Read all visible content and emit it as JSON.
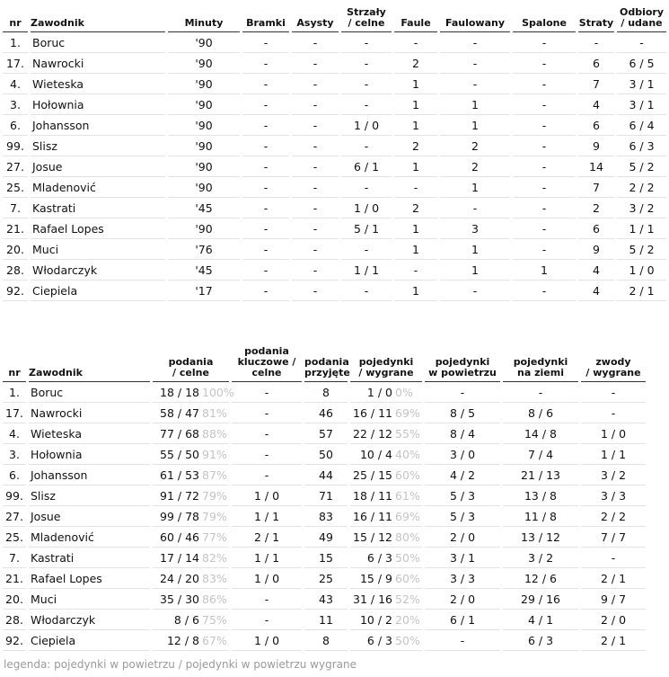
{
  "table1": {
    "headers": [
      "nr",
      "Zawodnik",
      "Minuty",
      "Bramki",
      "Asysty",
      "Strzały\n/ celne",
      "Faule",
      "Faulowany",
      "Spalone",
      "Straty",
      "Odbiory\n/ udane"
    ],
    "rows": [
      [
        "1.",
        "Boruc",
        "'90",
        "-",
        "-",
        "-",
        "-",
        "-",
        "-",
        "-",
        "-"
      ],
      [
        "17.",
        "Nawrocki",
        "'90",
        "-",
        "-",
        "-",
        "2",
        "-",
        "-",
        "6",
        "6 / 5"
      ],
      [
        "4.",
        "Wieteska",
        "'90",
        "-",
        "-",
        "-",
        "1",
        "-",
        "-",
        "7",
        "3 / 1"
      ],
      [
        "3.",
        "Hołownia",
        "'90",
        "-",
        "-",
        "-",
        "1",
        "1",
        "-",
        "4",
        "3 / 1"
      ],
      [
        "6.",
        "Johansson",
        "'90",
        "-",
        "-",
        "1 / 0",
        "1",
        "1",
        "-",
        "6",
        "6 / 4"
      ],
      [
        "99.",
        "Slisz",
        "'90",
        "-",
        "-",
        "-",
        "2",
        "2",
        "-",
        "9",
        "6 / 3"
      ],
      [
        "27.",
        "Josue",
        "'90",
        "-",
        "-",
        "6 / 1",
        "1",
        "2",
        "-",
        "14",
        "5 / 2"
      ],
      [
        "25.",
        "Mladenović",
        "'90",
        "-",
        "-",
        "-",
        "-",
        "1",
        "-",
        "7",
        "2 / 2"
      ],
      [
        "7.",
        "Kastrati",
        "'45",
        "-",
        "-",
        "1 / 0",
        "2",
        "-",
        "-",
        "2",
        "3 / 2"
      ],
      [
        "21.",
        "Rafael Lopes",
        "'90",
        "-",
        "-",
        "5 / 1",
        "1",
        "3",
        "-",
        "6",
        "1 / 1"
      ],
      [
        "20.",
        "Muci",
        "'76",
        "-",
        "-",
        "-",
        "1",
        "1",
        "-",
        "9",
        "5 / 2"
      ],
      [
        "28.",
        "Włodarczyk",
        "'45",
        "-",
        "-",
        "1 / 1",
        "-",
        "1",
        "1",
        "4",
        "1 / 0"
      ],
      [
        "92.",
        "Ciepiela",
        "'17",
        "-",
        "-",
        "-",
        "1",
        "-",
        "-",
        "4",
        "2 / 1"
      ]
    ]
  },
  "table2": {
    "headers": [
      "nr",
      "Zawodnik",
      "podania\n/ celne",
      "podania\nkluczowe /\ncelne",
      "podania\nprzyjęte",
      "pojedynki\n/ wygrane",
      "pojedynki\nw powietrzu",
      "pojedynki\nna ziemi",
      "zwody\n/ wygrane"
    ],
    "rows": [
      [
        "1.",
        "Boruc",
        "18 / 18",
        "100%",
        "-",
        "8",
        "1 / 0",
        "0%",
        "-",
        "-",
        "-"
      ],
      [
        "17.",
        "Nawrocki",
        "58 / 47",
        "81%",
        "-",
        "46",
        "16 / 11",
        "69%",
        "8 / 5",
        "8 / 6",
        "-"
      ],
      [
        "4.",
        "Wieteska",
        "77 / 68",
        "88%",
        "-",
        "57",
        "22 / 12",
        "55%",
        "8 / 4",
        "14 / 8",
        "1 / 0"
      ],
      [
        "3.",
        "Hołownia",
        "55 / 50",
        "91%",
        "-",
        "50",
        "10 / 4",
        "40%",
        "3 / 0",
        "7 / 4",
        "1 / 1"
      ],
      [
        "6.",
        "Johansson",
        "61 / 53",
        "87%",
        "-",
        "44",
        "25 / 15",
        "60%",
        "4 / 2",
        "21 / 13",
        "3 / 2"
      ],
      [
        "99.",
        "Slisz",
        "91 / 72",
        "79%",
        "1 / 0",
        "71",
        "18 / 11",
        "61%",
        "5 / 3",
        "13 / 8",
        "3 / 3"
      ],
      [
        "27.",
        "Josue",
        "99 / 78",
        "79%",
        "1 / 1",
        "83",
        "16 / 11",
        "69%",
        "5 / 3",
        "11 / 8",
        "2 / 2"
      ],
      [
        "25.",
        "Mladenović",
        "60 / 46",
        "77%",
        "2 / 1",
        "49",
        "15 / 12",
        "80%",
        "2 / 0",
        "13 / 12",
        "7 / 7"
      ],
      [
        "7.",
        "Kastrati",
        "17 / 14",
        "82%",
        "1 / 1",
        "15",
        "6 / 3",
        "50%",
        "3 / 1",
        "3 / 2",
        "-"
      ],
      [
        "21.",
        "Rafael Lopes",
        "24 / 20",
        "83%",
        "1 / 0",
        "25",
        "15 / 9",
        "60%",
        "3 / 3",
        "12 / 6",
        "2 / 1"
      ],
      [
        "20.",
        "Muci",
        "35 / 30",
        "86%",
        "-",
        "43",
        "31 / 16",
        "52%",
        "2 / 0",
        "29 / 16",
        "9 / 7"
      ],
      [
        "28.",
        "Włodarczyk",
        "8 / 6",
        "75%",
        "-",
        "11",
        "10 / 2",
        "20%",
        "6 / 1",
        "4 / 1",
        "2 / 0"
      ],
      [
        "92.",
        "Ciepiela",
        "12 / 8",
        "67%",
        "1 / 0",
        "8",
        "6 / 3",
        "50%",
        "-",
        "6 / 3",
        "2 / 1"
      ]
    ]
  },
  "legend": "legenda: pojedynki w powietrzu / pojedynki w powietrzu wygrane"
}
